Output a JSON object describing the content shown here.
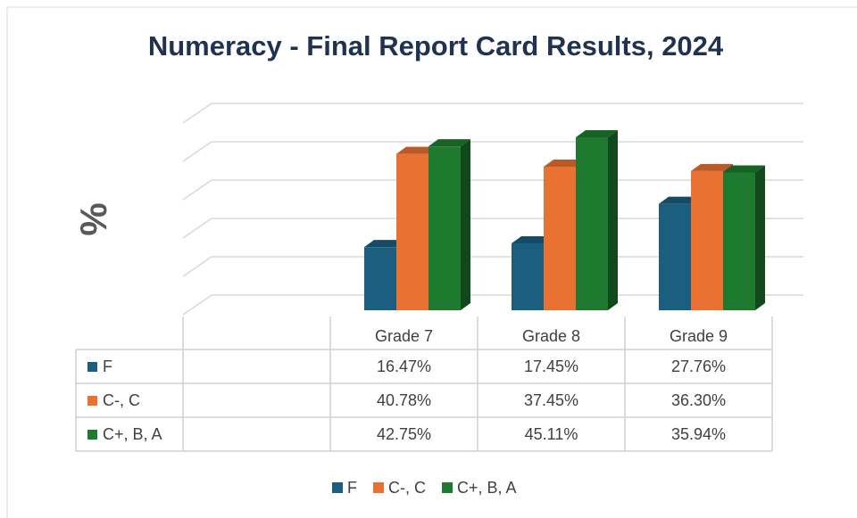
{
  "chart_data": {
    "type": "bar3d",
    "title": "Numeracy - Final Report Card Results, 2024",
    "y_label": "%",
    "categories": [
      "Grade 7",
      "Grade 8",
      "Grade 9"
    ],
    "series": [
      {
        "name": "F",
        "color": "#1b5e80",
        "values": [
          16.47,
          17.45,
          27.76
        ],
        "value_labels": [
          "16.47%",
          "17.45%",
          "27.76%"
        ]
      },
      {
        "name": "C-, C",
        "color": "#e97132",
        "values": [
          40.78,
          37.45,
          36.3
        ],
        "value_labels": [
          "40.78%",
          "37.45%",
          "36.30%"
        ]
      },
      {
        "name": "C+, B, A",
        "color": "#1d7a2e",
        "values": [
          42.75,
          45.11,
          35.94
        ],
        "value_labels": [
          "42.75%",
          "45.11%",
          "35.94%"
        ]
      }
    ],
    "ylim": [
      0,
      50
    ],
    "yticks": [
      0,
      10,
      20,
      30,
      40,
      50
    ],
    "grid": true,
    "legend": "bottom"
  }
}
